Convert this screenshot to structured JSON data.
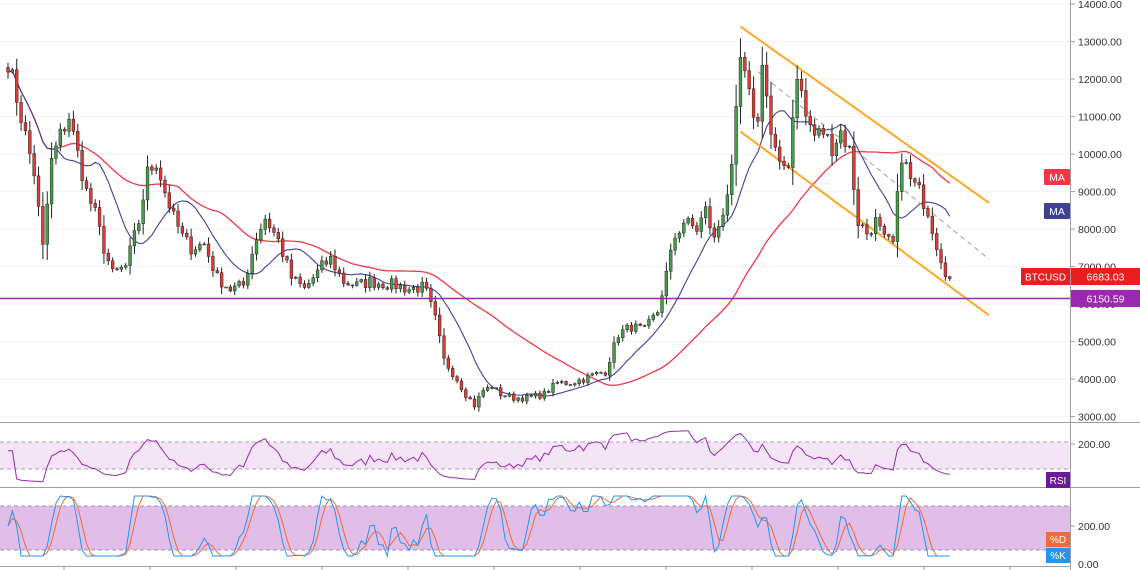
{
  "chart_data": [
    {
      "type": "candlestick",
      "symbol": "BTCUSD",
      "last_price": "6683.03",
      "support_level": 6150.59,
      "support_label": "6150.59",
      "ylim": [
        2800,
        14200
      ],
      "y_ticks": [
        3000,
        4000,
        5000,
        6000,
        7000,
        8000,
        9000,
        10000,
        11000,
        12000,
        13000,
        14000
      ],
      "y_tick_labels": [
        "3000.00",
        "4000.00",
        "5000.00",
        "6000.00",
        "7000.00",
        "8000.00",
        "9000.00",
        "10000.00",
        "11000.00",
        "12000.00",
        "13000.00",
        "14000.00"
      ],
      "bar_count": 217,
      "close_anchors": [
        [
          0,
          12500
        ],
        [
          3,
          11000
        ],
        [
          6,
          9500
        ],
        [
          8,
          7500
        ],
        [
          10,
          9800
        ],
        [
          12,
          10500
        ],
        [
          14,
          11000
        ],
        [
          16,
          10000
        ],
        [
          18,
          9000
        ],
        [
          20,
          8400
        ],
        [
          22,
          7500
        ],
        [
          24,
          6800
        ],
        [
          27,
          7000
        ],
        [
          30,
          8200
        ],
        [
          32,
          9500
        ],
        [
          34,
          9800
        ],
        [
          36,
          9000
        ],
        [
          38,
          8300
        ],
        [
          40,
          7800
        ],
        [
          42,
          7500
        ],
        [
          45,
          7600
        ],
        [
          48,
          6700
        ],
        [
          51,
          6400
        ],
        [
          54,
          6500
        ],
        [
          57,
          7800
        ],
        [
          59,
          8300
        ],
        [
          62,
          7700
        ],
        [
          65,
          6700
        ],
        [
          68,
          6400
        ],
        [
          72,
          7000
        ],
        [
          74,
          7200
        ],
        [
          77,
          6600
        ],
        [
          80,
          6500
        ],
        [
          83,
          6600
        ],
        [
          86,
          6550
        ],
        [
          89,
          6500
        ],
        [
          92,
          6400
        ],
        [
          95,
          6450
        ],
        [
          96,
          6300
        ],
        [
          98,
          5600
        ],
        [
          100,
          4500
        ],
        [
          103,
          4000
        ],
        [
          105,
          3600
        ],
        [
          107,
          3300
        ],
        [
          109,
          3700
        ],
        [
          111,
          3800
        ],
        [
          113,
          3600
        ],
        [
          116,
          3500
        ],
        [
          119,
          3500
        ],
        [
          123,
          3600
        ],
        [
          126,
          3900
        ],
        [
          129,
          3900
        ],
        [
          132,
          4000
        ],
        [
          134,
          4100
        ],
        [
          137,
          4200
        ],
        [
          140,
          5200
        ],
        [
          143,
          5400
        ],
        [
          146,
          5300
        ],
        [
          149,
          5800
        ],
        [
          151,
          6800
        ],
        [
          153,
          7800
        ],
        [
          155,
          8200
        ],
        [
          158,
          8000
        ],
        [
          160,
          8500
        ],
        [
          162,
          7700
        ],
        [
          164,
          8500
        ],
        [
          166,
          9500
        ],
        [
          167,
          11000
        ],
        [
          168,
          12500
        ],
        [
          170,
          11500
        ],
        [
          172,
          10800
        ],
        [
          173,
          12600
        ],
        [
          175,
          10500
        ],
        [
          177,
          9600
        ],
        [
          179,
          9800
        ],
        [
          181,
          12200
        ],
        [
          183,
          11000
        ],
        [
          185,
          10500
        ],
        [
          187,
          10600
        ],
        [
          189,
          10200
        ],
        [
          191,
          10600
        ],
        [
          193,
          10100
        ],
        [
          195,
          8200
        ],
        [
          197,
          7900
        ],
        [
          199,
          8200
        ],
        [
          201,
          7700
        ],
        [
          203,
          7600
        ],
        [
          205,
          10000
        ],
        [
          207,
          9300
        ],
        [
          209,
          9000
        ],
        [
          211,
          8500
        ],
        [
          213,
          7600
        ],
        [
          215,
          6900
        ],
        [
          216,
          6683
        ]
      ],
      "moving_averages": [
        {
          "name": "MA",
          "label": "MA",
          "color": "#f23645"
        },
        {
          "name": "MA",
          "label": "MA",
          "color": "#3f4197"
        }
      ],
      "channel": {
        "upper": {
          "from": [
            168,
            13400
          ],
          "to": [
            225,
            8700
          ]
        },
        "lower": {
          "from": [
            168,
            10600
          ],
          "to": [
            225,
            5700
          ]
        },
        "middle": {
          "from": [
            172,
            12200
          ],
          "to": [
            225,
            7200
          ]
        }
      }
    },
    {
      "type": "line",
      "indicator": "RSI",
      "label": "RSI",
      "band_labels": [
        "200.00"
      ]
    },
    {
      "type": "line",
      "indicator": "Stochastic",
      "series": [
        {
          "name": "%D",
          "label": "%D",
          "color": "#ef6c3a"
        },
        {
          "name": "%K",
          "label": "%K",
          "color": "#2196f3"
        }
      ],
      "band_labels": [
        "200.00",
        "0.00"
      ]
    }
  ],
  "colors": {
    "up": "#26a69a",
    "up_fill": "#4caf50",
    "down": "#ef5350",
    "support": "#9c27b0",
    "channel": "#ffa726",
    "rsi_line": "#9c27b0",
    "rsi_band": "#f3e5f5",
    "stoch_band": "#e1bee7",
    "ma_red": "#f23645",
    "ma_blue": "#3f4197",
    "price_tag": "#e91e1e",
    "support_tag": "#9c27b0"
  }
}
